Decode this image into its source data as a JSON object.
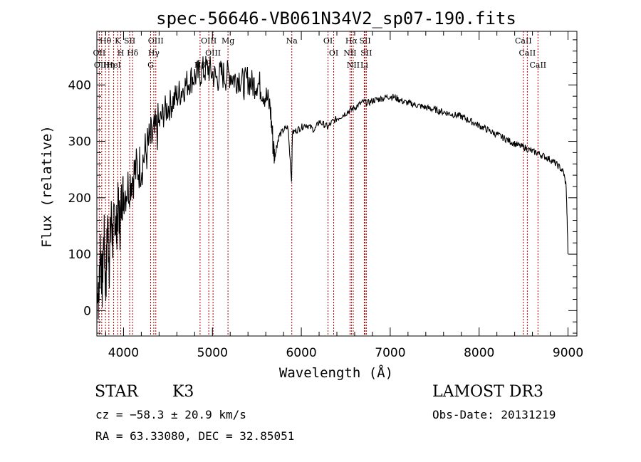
{
  "chart_data": {
    "type": "line",
    "title": "spec-56646-VB061N34V2_sp07-190.fits",
    "xlabel": "Wavelength (Å)",
    "ylabel": "Flux (relative)",
    "xlim": [
      3700,
      9100
    ],
    "ylim": [
      -45,
      495
    ],
    "xticks": [
      4000,
      5000,
      6000,
      7000,
      8000,
      9000
    ],
    "yticks": [
      0,
      100,
      200,
      300,
      400
    ],
    "grid": false,
    "line_color": "#000000",
    "marker_color": "#aa0000",
    "series": [
      {
        "x": [
          3700,
          3720,
          3740,
          3760,
          3780,
          3800,
          3820,
          3840,
          3860,
          3880,
          3900,
          3920,
          3940,
          3960,
          3980,
          4000,
          4050,
          4100,
          4150,
          4200,
          4250,
          4300,
          4350,
          4400,
          4450,
          4500,
          4550,
          4600,
          4650,
          4700,
          4750,
          4800,
          4850,
          4900,
          4950,
          5000,
          5050,
          5100,
          5150,
          5200,
          5250,
          5300,
          5350,
          5400,
          5450,
          5500,
          5550,
          5600,
          5650,
          5680,
          5700,
          5720,
          5750,
          5800,
          5850,
          5890,
          5900,
          5950,
          6000,
          6050,
          6100,
          6150,
          6200,
          6250,
          6300,
          6350,
          6400,
          6450,
          6500,
          6550,
          6600,
          6650,
          6700,
          6750,
          6800,
          6850,
          6900,
          6950,
          7000,
          7050,
          7100,
          7150,
          7200,
          7250,
          7300,
          7350,
          7400,
          7450,
          7500,
          7550,
          7600,
          7650,
          7700,
          7750,
          7800,
          7850,
          7900,
          7950,
          8000,
          8050,
          8100,
          8150,
          8200,
          8250,
          8300,
          8350,
          8400,
          8450,
          8500,
          8550,
          8600,
          8650,
          8700,
          8750,
          8800,
          8850,
          8900,
          8950,
          8980,
          9000
        ],
        "y": [
          60,
          10,
          120,
          40,
          140,
          30,
          160,
          80,
          170,
          120,
          180,
          140,
          190,
          150,
          200,
          210,
          220,
          240,
          250,
          260,
          280,
          300,
          310,
          330,
          350,
          360,
          370,
          380,
          390,
          400,
          410,
          415,
          420,
          425,
          430,
          420,
          410,
          420,
          415,
          420,
          410,
          415,
          400,
          410,
          400,
          405,
          395,
          380,
          360,
          300,
          270,
          290,
          310,
          320,
          325,
          230,
          315,
          320,
          325,
          330,
          325,
          320,
          335,
          330,
          325,
          335,
          340,
          345,
          350,
          355,
          360,
          365,
          370,
          368,
          372,
          374,
          376,
          378,
          380,
          378,
          374,
          370,
          368,
          366,
          364,
          362,
          360,
          358,
          356,
          354,
          352,
          350,
          348,
          346,
          344,
          340,
          336,
          332,
          328,
          324,
          320,
          316,
          312,
          308,
          304,
          300,
          296,
          292,
          290,
          286,
          282,
          280,
          276,
          272,
          268,
          262,
          255,
          245,
          220,
          100
        ]
      }
    ],
    "lines": [
      {
        "name": "Hθ",
        "x": 3797
      },
      {
        "name": "OII",
        "x": 3727
      },
      {
        "name": "OIII",
        "x": 3755
      },
      {
        "name": "K",
        "x": 3934
      },
      {
        "name": "H",
        "x": 3969
      },
      {
        "name": "HeI",
        "x": 3889
      },
      {
        "name": "Hη",
        "x": 3835
      },
      {
        "name": "SII",
        "x": 4069
      },
      {
        "name": "Hδ",
        "x": 4102
      },
      {
        "name": "OIII",
        "x": 4363
      },
      {
        "name": "Hγ",
        "x": 4340
      },
      {
        "name": "G",
        "x": 4305
      },
      {
        "name": "OIII",
        "x": 4959
      },
      {
        "name": "OIII",
        "x": 5007
      },
      {
        "name": "Hβ",
        "x": 4861
      },
      {
        "name": "Mg",
        "x": 5175
      },
      {
        "name": "Na",
        "x": 5893
      },
      {
        "name": "OI",
        "x": 6300
      },
      {
        "name": "OI",
        "x": 6364
      },
      {
        "name": "Hα",
        "x": 6563
      },
      {
        "name": "NII",
        "x": 6548
      },
      {
        "name": "NII",
        "x": 6584
      },
      {
        "name": "SII",
        "x": 6717
      },
      {
        "name": "SII",
        "x": 6731
      },
      {
        "name": "Li",
        "x": 6708
      },
      {
        "name": "CaII",
        "x": 8498
      },
      {
        "name": "CaII",
        "x": 8542
      },
      {
        "name": "CaII",
        "x": 8662
      }
    ]
  },
  "info": {
    "class": "STAR",
    "subclass": "K3",
    "survey": "LAMOST DR3",
    "cz": "cz = −58.3 ± 20.9 km/s",
    "obsdate": "Obs-Date: 20131219",
    "radec": "RA =  63.33080, DEC =  32.85051"
  }
}
